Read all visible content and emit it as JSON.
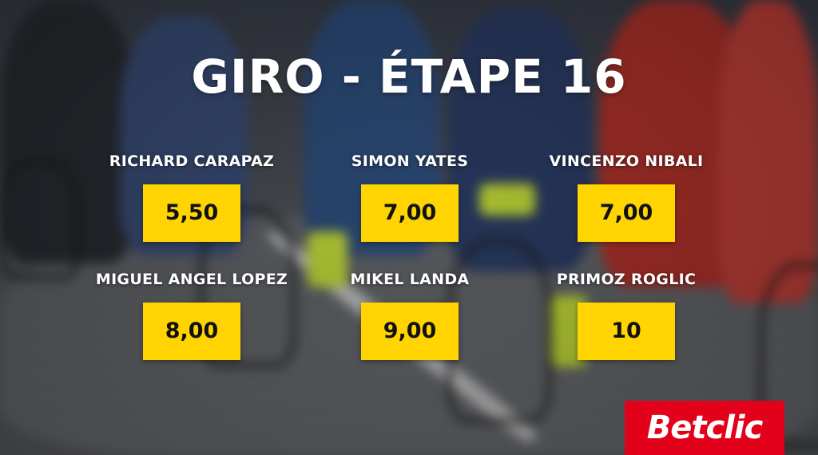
{
  "title": "GIRO - ÉTAPE 16",
  "riders": [
    {
      "name": "RICHARD CARAPAZ",
      "odds": "5,50"
    },
    {
      "name": "SIMON YATES",
      "odds": "7,00"
    },
    {
      "name": "VINCENZO NIBALI",
      "odds": "7,00"
    },
    {
      "name": "MIGUEL ANGEL LOPEZ",
      "odds": "8,00"
    },
    {
      "name": "MIKEL LANDA",
      "odds": "9,00"
    },
    {
      "name": "PRIMOZ ROGLIC",
      "odds": "10"
    }
  ],
  "brand": {
    "name": "Betclic",
    "color": "#e2001a"
  },
  "accent": "#ffd400",
  "background": "blurred photo of cyclists in a peloton on a road"
}
